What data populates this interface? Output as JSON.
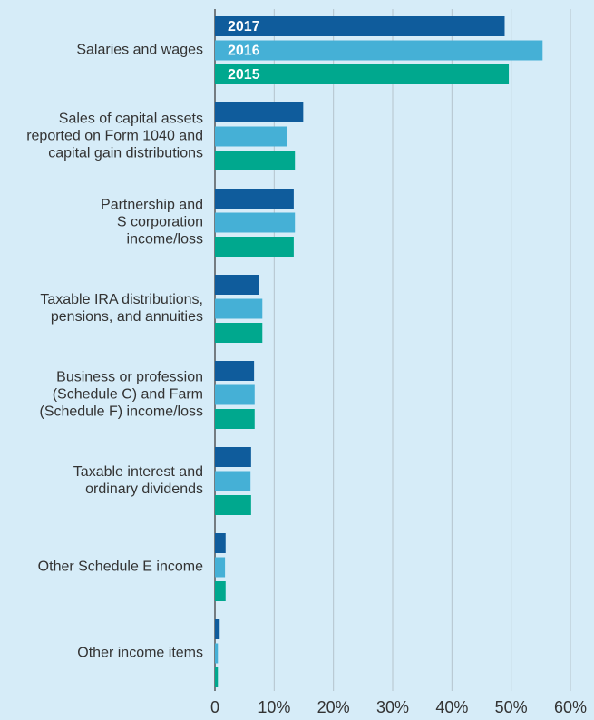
{
  "chart_data": {
    "type": "bar",
    "orientation": "horizontal",
    "categories": [
      "Salaries and wages",
      "Sales of capital assets\nreported on Form 1040 and\ncapital gain distributions",
      "Partnership and\nS corporation\nincome/loss",
      "Taxable IRA distributions,\npensions, and annuities",
      "Business or profession\n(Schedule C) and Farm\n(Schedule F) income/loss",
      "Taxable interest and\nordinary dividends",
      "Other Schedule E income",
      "Other income items"
    ],
    "series": [
      {
        "name": "2017",
        "color": "#0f5c9c",
        "values": [
          48.9,
          14.9,
          13.3,
          7.5,
          6.6,
          6.1,
          1.8,
          0.8
        ]
      },
      {
        "name": "2016",
        "color": "#45b0d6",
        "values": [
          55.3,
          12.1,
          13.5,
          8.0,
          6.7,
          6.0,
          1.7,
          0.5
        ]
      },
      {
        "name": "2015",
        "color": "#00a88e",
        "values": [
          49.6,
          13.5,
          13.3,
          8.0,
          6.7,
          6.1,
          1.8,
          0.5
        ]
      }
    ],
    "xlim": [
      0,
      60
    ],
    "xticks": [
      0,
      {
        "value": 10,
        "label": "10%"
      },
      {
        "value": 20,
        "label": "20%"
      },
      {
        "value": 30,
        "label": "30%"
      },
      {
        "value": 40,
        "label": "40%"
      },
      {
        "value": 50,
        "label": "50%"
      },
      {
        "value": 60,
        "label": "60%"
      }
    ],
    "grid": true
  }
}
